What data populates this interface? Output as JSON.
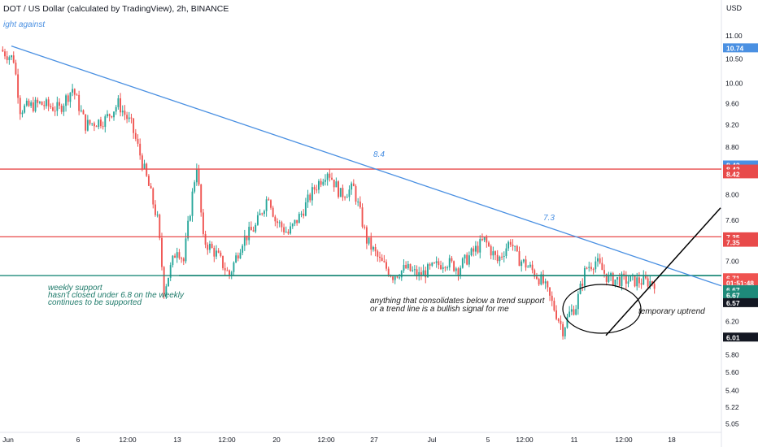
{
  "header": {
    "title": "DOT / US Dollar (calculated by TradingView), 2h, BINANCE",
    "currency": "USD"
  },
  "colors": {
    "trendline": "#4a90e2",
    "resistance": "#e84a4a",
    "support": "#1e8a7a",
    "candle_up": "#26a69a",
    "candle_down": "#ef5350",
    "annotation_text_dark": "#1c1c1c",
    "annotation_text_teal": "#1e7a6a",
    "annotation_text_blue": "#4a90e2"
  },
  "annotations": {
    "top_left": "ight against",
    "label_84": "8.4",
    "label_73": "7.3",
    "support_line1": "weekly support",
    "support_line2": "hasn't closed under 6.8 on the weekly",
    "support_line3": "continues to be supported",
    "consolidation_line1": "anything that consolidates below a trend support",
    "consolidation_line2": "or a trend line is a bullish signal for me",
    "uptrend": "temporary uptrend"
  },
  "price_badges": [
    {
      "value": "10.74",
      "price": 10.74,
      "bg": "#4a90e2",
      "fg": "#ffffff"
    },
    {
      "value": "8.42",
      "price": 8.49,
      "bg": "#4a90e2",
      "fg": "#ffffff"
    },
    {
      "value": "8.42",
      "price": 8.42,
      "bg": "#e84a4a",
      "fg": "#ffffff"
    },
    {
      "value": "8.42",
      "price": 8.34,
      "bg": "#e84a4a",
      "fg": "#ffffff"
    },
    {
      "value": "7.35",
      "price": 7.35,
      "bg": "#e84a4a",
      "fg": "#ffffff"
    },
    {
      "value": "7.35",
      "price": 7.27,
      "bg": "#e84a4a",
      "fg": "#ffffff"
    },
    {
      "value": "6.71",
      "price": 6.77,
      "bg": "#ef5350",
      "fg": "#ffffff"
    },
    {
      "value": "01:51:48",
      "price": 6.7,
      "bg": "#ef5350",
      "fg": "#ffffff"
    },
    {
      "value": "6.67",
      "price": 6.61,
      "bg": "#1e8a7a",
      "fg": "#ffffff"
    },
    {
      "value": "6.67",
      "price": 6.54,
      "bg": "#1e8a7a",
      "fg": "#ffffff"
    },
    {
      "value": "6.57",
      "price": 6.44,
      "bg": "#131722",
      "fg": "#ffffff"
    },
    {
      "value": "6.01",
      "price": 6.01,
      "bg": "#131722",
      "fg": "#ffffff"
    }
  ],
  "chart_data": {
    "type": "candlestick",
    "title": "DOT / US Dollar (calculated by TradingView), 2h, BINANCE",
    "y_axis": {
      "unit": "USD",
      "scale": "log",
      "range": [
        4.98,
        11.35
      ],
      "ticks": [
        11.0,
        10.5,
        10.0,
        9.6,
        9.2,
        8.8,
        8.0,
        7.6,
        7.0,
        6.2,
        5.8,
        5.6,
        5.4,
        5.22,
        5.05
      ]
    },
    "x_axis": {
      "ticks": [
        "Jun",
        "6",
        "12:00",
        "13",
        "12:00",
        "20",
        "12:00",
        "27",
        "Jul",
        "5",
        "12:00",
        "11",
        "12:00",
        "18"
      ]
    },
    "price_path": [
      [
        0,
        10.7
      ],
      [
        0.02,
        10.5
      ],
      [
        0.03,
        9.5
      ],
      [
        0.06,
        9.6
      ],
      [
        0.09,
        9.5
      ],
      [
        0.11,
        9.9
      ],
      [
        0.13,
        9.2
      ],
      [
        0.16,
        9.3
      ],
      [
        0.18,
        9.6
      ],
      [
        0.2,
        9.2
      ],
      [
        0.22,
        8.4
      ],
      [
        0.24,
        7.6
      ],
      [
        0.25,
        6.6
      ],
      [
        0.27,
        7.2
      ],
      [
        0.28,
        7.0
      ],
      [
        0.3,
        8.5
      ],
      [
        0.31,
        7.3
      ],
      [
        0.33,
        7.1
      ],
      [
        0.35,
        6.8
      ],
      [
        0.37,
        7.3
      ],
      [
        0.39,
        7.5
      ],
      [
        0.41,
        8.0
      ],
      [
        0.42,
        7.6
      ],
      [
        0.44,
        7.4
      ],
      [
        0.46,
        7.7
      ],
      [
        0.48,
        8.1
      ],
      [
        0.5,
        8.4
      ],
      [
        0.52,
        8.0
      ],
      [
        0.54,
        8.1
      ],
      [
        0.56,
        7.3
      ],
      [
        0.58,
        7.0
      ],
      [
        0.6,
        6.8
      ],
      [
        0.62,
        6.9
      ],
      [
        0.64,
        6.8
      ],
      [
        0.66,
        6.9
      ],
      [
        0.68,
        7.0
      ],
      [
        0.7,
        6.9
      ],
      [
        0.72,
        7.1
      ],
      [
        0.74,
        7.3
      ],
      [
        0.76,
        7.0
      ],
      [
        0.78,
        7.3
      ],
      [
        0.79,
        7.05
      ],
      [
        0.81,
        6.9
      ],
      [
        0.83,
        6.7
      ],
      [
        0.85,
        6.3
      ],
      [
        0.86,
        6.1
      ],
      [
        0.87,
        6.3
      ],
      [
        0.88,
        6.4
      ],
      [
        0.895,
        6.9
      ],
      [
        0.91,
        7.0
      ],
      [
        0.93,
        6.75
      ],
      [
        1,
        6.71
      ]
    ],
    "lines": [
      {
        "name": "descending trendline",
        "kind": "trend",
        "from": {
          "x": "Jun",
          "y": 10.78
        },
        "to": {
          "x": "past 18",
          "y": 6.66
        }
      },
      {
        "name": "resistance 8.42",
        "kind": "horizontal",
        "y": 8.42
      },
      {
        "name": "resistance 7.35",
        "kind": "horizontal",
        "y": 7.35
      },
      {
        "name": "weekly support",
        "kind": "horizontal",
        "y": 6.8
      },
      {
        "name": "temporary uptrend",
        "kind": "trend",
        "from": {
          "x": "12:00",
          "y": 6.03
        },
        "to": {
          "x": "past 18",
          "y": 7.79
        }
      }
    ],
    "grid": false,
    "legend": "none"
  }
}
